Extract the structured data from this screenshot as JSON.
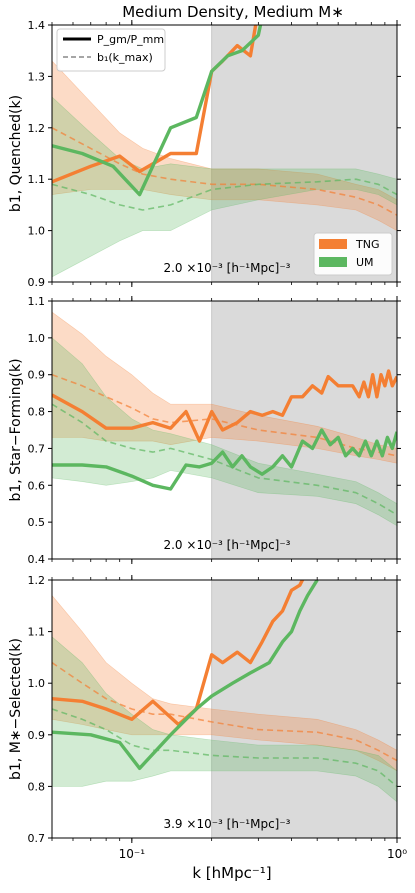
{
  "figure": {
    "title": "Medium Density, Medium M∗",
    "xlabel": "k [hMpc⁻¹]",
    "x_ticks": [
      {
        "value": 0.1,
        "label": "10⁻¹"
      },
      {
        "value": 1.0,
        "label": "10⁰"
      }
    ],
    "shade_from_k": 0.2,
    "colors": {
      "TNG": "#f47f33",
      "UM": "#5cb760",
      "shade": "#dadada"
    }
  },
  "legend_lines": [
    {
      "label": "P_gm/P_mm",
      "style": "solid"
    },
    {
      "label": "b₁(k_max)",
      "style": "dashed"
    }
  ],
  "legend_colors": [
    {
      "label": "TNG",
      "color": "#f47f33"
    },
    {
      "label": "UM",
      "color": "#5cb760"
    }
  ],
  "chart_data": [
    {
      "type": "line",
      "ylabel": "b1, Quenched(k)",
      "annotation": "2.0 ×10⁻³ [h⁻¹Mpc]⁻³",
      "ylim": [
        0.9,
        1.4
      ],
      "yticks": [
        0.9,
        1.0,
        1.1,
        1.2,
        1.3,
        1.4
      ],
      "series": [
        {
          "name": "TNG",
          "style": "solid",
          "x": [
            0.05,
            0.07,
            0.09,
            0.107,
            0.14,
            0.175,
            0.2,
            0.22,
            0.25,
            0.28,
            0.3,
            0.33
          ],
          "y": [
            1.095,
            1.125,
            1.145,
            1.115,
            1.15,
            1.15,
            1.31,
            1.33,
            1.36,
            1.34,
            1.43,
            1.5
          ]
        },
        {
          "name": "UM",
          "style": "solid",
          "x": [
            0.05,
            0.065,
            0.085,
            0.107,
            0.14,
            0.175,
            0.2,
            0.23,
            0.26,
            0.3,
            0.33
          ],
          "y": [
            1.165,
            1.15,
            1.125,
            1.07,
            1.2,
            1.22,
            1.31,
            1.34,
            1.35,
            1.38,
            1.48
          ]
        },
        {
          "name": "TNG",
          "style": "dashed",
          "x": [
            0.05,
            0.07,
            0.09,
            0.11,
            0.14,
            0.2,
            0.3,
            0.5,
            0.7,
            0.85,
            1.0
          ],
          "y": [
            1.2,
            1.16,
            1.13,
            1.11,
            1.1,
            1.09,
            1.09,
            1.08,
            1.065,
            1.05,
            1.03
          ],
          "band_lo": [
            1.07,
            1.08,
            1.08,
            1.08,
            1.07,
            1.06,
            1.06,
            1.05,
            1.04,
            1.02,
            1.0
          ],
          "band_hi": [
            1.33,
            1.25,
            1.19,
            1.16,
            1.14,
            1.12,
            1.12,
            1.11,
            1.09,
            1.08,
            1.06
          ]
        },
        {
          "name": "UM",
          "style": "dashed",
          "x": [
            0.05,
            0.07,
            0.09,
            0.11,
            0.14,
            0.2,
            0.3,
            0.5,
            0.7,
            0.85,
            1.0
          ],
          "y": [
            1.09,
            1.07,
            1.05,
            1.04,
            1.05,
            1.08,
            1.09,
            1.095,
            1.1,
            1.09,
            1.07
          ],
          "band_lo": [
            0.91,
            0.95,
            0.98,
            1.0,
            1.0,
            1.04,
            1.06,
            1.08,
            1.08,
            1.07,
            1.05
          ],
          "band_hi": [
            1.26,
            1.19,
            1.14,
            1.12,
            1.13,
            1.12,
            1.12,
            1.12,
            1.12,
            1.11,
            1.1
          ]
        }
      ]
    },
    {
      "type": "line",
      "ylabel": "b1, Star−Forming(k)",
      "annotation": "2.0 ×10⁻³ [h⁻¹Mpc]⁻³",
      "ylim": [
        0.4,
        1.1
      ],
      "yticks": [
        0.4,
        0.5,
        0.6,
        0.7,
        0.8,
        0.9,
        1.0,
        1.1
      ],
      "series": [
        {
          "name": "TNG",
          "style": "solid",
          "x": [
            0.05,
            0.065,
            0.08,
            0.1,
            0.12,
            0.14,
            0.16,
            0.18,
            0.2,
            0.22,
            0.25,
            0.28,
            0.31,
            0.34,
            0.37,
            0.4,
            0.44,
            0.48,
            0.52,
            0.55,
            0.6,
            0.64,
            0.68,
            0.72,
            0.75,
            0.78,
            0.81,
            0.84,
            0.87,
            0.9,
            0.93,
            0.96,
            1.0
          ],
          "y": [
            0.845,
            0.8,
            0.755,
            0.755,
            0.77,
            0.755,
            0.8,
            0.72,
            0.8,
            0.75,
            0.77,
            0.8,
            0.79,
            0.8,
            0.79,
            0.84,
            0.84,
            0.87,
            0.85,
            0.895,
            0.87,
            0.87,
            0.87,
            0.84,
            0.88,
            0.84,
            0.9,
            0.84,
            0.9,
            0.87,
            0.91,
            0.87,
            0.895
          ]
        },
        {
          "name": "UM",
          "style": "solid",
          "x": [
            0.05,
            0.065,
            0.08,
            0.1,
            0.12,
            0.14,
            0.16,
            0.18,
            0.2,
            0.22,
            0.24,
            0.26,
            0.28,
            0.31,
            0.34,
            0.37,
            0.4,
            0.44,
            0.48,
            0.52,
            0.56,
            0.6,
            0.64,
            0.68,
            0.72,
            0.76,
            0.8,
            0.84,
            0.88,
            0.92,
            0.96,
            1.0
          ],
          "y": [
            0.655,
            0.655,
            0.65,
            0.625,
            0.6,
            0.59,
            0.655,
            0.65,
            0.66,
            0.69,
            0.65,
            0.68,
            0.65,
            0.63,
            0.65,
            0.68,
            0.65,
            0.72,
            0.7,
            0.75,
            0.71,
            0.73,
            0.68,
            0.7,
            0.68,
            0.72,
            0.68,
            0.72,
            0.68,
            0.73,
            0.7,
            0.745
          ]
        },
        {
          "name": "TNG",
          "style": "dashed",
          "x": [
            0.05,
            0.065,
            0.08,
            0.1,
            0.12,
            0.14,
            0.2,
            0.3,
            0.5,
            0.7,
            0.85,
            1.0
          ],
          "y": [
            0.9,
            0.87,
            0.84,
            0.81,
            0.78,
            0.77,
            0.78,
            0.75,
            0.73,
            0.7,
            0.69,
            0.68
          ],
          "band_lo": [
            0.73,
            0.73,
            0.72,
            0.72,
            0.72,
            0.71,
            0.73,
            0.72,
            0.7,
            0.68,
            0.67,
            0.66
          ],
          "band_hi": [
            1.07,
            1.01,
            0.95,
            0.9,
            0.85,
            0.82,
            0.82,
            0.79,
            0.76,
            0.73,
            0.71,
            0.7
          ]
        },
        {
          "name": "UM",
          "style": "dashed",
          "x": [
            0.05,
            0.065,
            0.08,
            0.1,
            0.12,
            0.14,
            0.2,
            0.3,
            0.5,
            0.7,
            0.85,
            1.0
          ],
          "y": [
            0.82,
            0.77,
            0.72,
            0.7,
            0.69,
            0.7,
            0.67,
            0.62,
            0.6,
            0.58,
            0.55,
            0.52
          ],
          "band_lo": [
            0.62,
            0.61,
            0.6,
            0.61,
            0.62,
            0.64,
            0.62,
            0.58,
            0.57,
            0.55,
            0.52,
            0.49
          ],
          "band_hi": [
            1.0,
            0.93,
            0.84,
            0.78,
            0.75,
            0.74,
            0.71,
            0.66,
            0.63,
            0.61,
            0.58,
            0.55
          ]
        }
      ]
    },
    {
      "type": "line",
      "ylabel": "b1, M∗−Selected(k)",
      "annotation": "3.9 ×10⁻³ [h⁻¹Mpc]⁻³",
      "ylim": [
        0.7,
        1.2
      ],
      "yticks": [
        0.7,
        0.8,
        0.9,
        1.0,
        1.1,
        1.2
      ],
      "series": [
        {
          "name": "TNG",
          "style": "solid",
          "x": [
            0.05,
            0.065,
            0.08,
            0.1,
            0.12,
            0.15,
            0.175,
            0.2,
            0.22,
            0.25,
            0.28,
            0.31,
            0.34,
            0.37,
            0.4,
            0.43,
            0.46
          ],
          "y": [
            0.97,
            0.965,
            0.95,
            0.93,
            0.965,
            0.92,
            0.95,
            1.055,
            1.04,
            1.06,
            1.04,
            1.08,
            1.12,
            1.14,
            1.18,
            1.19,
            1.22
          ]
        },
        {
          "name": "UM",
          "style": "solid",
          "x": [
            0.05,
            0.07,
            0.09,
            0.107,
            0.14,
            0.175,
            0.2,
            0.24,
            0.28,
            0.33,
            0.37,
            0.4,
            0.43,
            0.46,
            0.5
          ],
          "y": [
            0.905,
            0.9,
            0.885,
            0.835,
            0.9,
            0.95,
            0.975,
            1.0,
            1.02,
            1.04,
            1.08,
            1.1,
            1.14,
            1.17,
            1.2
          ]
        },
        {
          "name": "TNG",
          "style": "dashed",
          "x": [
            0.05,
            0.065,
            0.08,
            0.1,
            0.12,
            0.14,
            0.2,
            0.3,
            0.5,
            0.7,
            0.85,
            1.0
          ],
          "y": [
            1.04,
            1.0,
            0.97,
            0.95,
            0.94,
            0.94,
            0.925,
            0.91,
            0.905,
            0.89,
            0.87,
            0.85
          ],
          "band_lo": [
            0.93,
            0.92,
            0.91,
            0.9,
            0.9,
            0.9,
            0.9,
            0.89,
            0.88,
            0.87,
            0.85,
            0.83
          ],
          "band_hi": [
            1.17,
            1.1,
            1.04,
            1.0,
            0.97,
            0.96,
            0.95,
            0.94,
            0.93,
            0.91,
            0.89,
            0.87
          ]
        },
        {
          "name": "UM",
          "style": "dashed",
          "x": [
            0.05,
            0.065,
            0.08,
            0.1,
            0.12,
            0.14,
            0.2,
            0.3,
            0.5,
            0.7,
            0.85,
            1.0
          ],
          "y": [
            0.95,
            0.93,
            0.91,
            0.88,
            0.87,
            0.87,
            0.86,
            0.855,
            0.855,
            0.845,
            0.83,
            0.8
          ],
          "band_lo": [
            0.8,
            0.8,
            0.81,
            0.81,
            0.82,
            0.83,
            0.83,
            0.83,
            0.83,
            0.82,
            0.8,
            0.77
          ],
          "band_hi": [
            1.09,
            1.04,
            0.98,
            0.94,
            0.91,
            0.9,
            0.89,
            0.88,
            0.88,
            0.87,
            0.86,
            0.83
          ]
        }
      ]
    }
  ]
}
